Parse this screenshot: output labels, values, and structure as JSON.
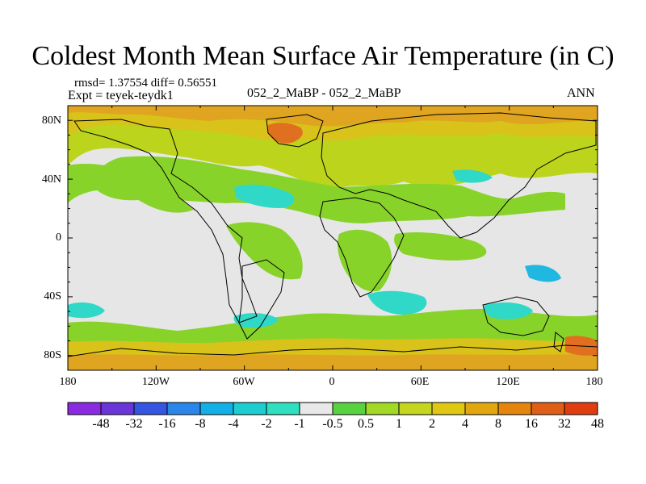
{
  "title": "Coldest Month Mean Surface Air Temperature (in C)",
  "stats": "rmsd= 1.37554 diff= 0.56551",
  "experiment": "Expt = teyek-teydk1",
  "center_title": "052_2_MaBP - 052_2_MaBP",
  "season": "ANN",
  "lat_labels": [
    "80N",
    "40N",
    "0",
    "40S",
    "80S"
  ],
  "lon_labels": [
    "180",
    "120W",
    "60W",
    "0",
    "60E",
    "120E",
    "180"
  ],
  "colorbar": {
    "labels": [
      "-48",
      "-32",
      "-16",
      "-8",
      "-4",
      "-2",
      "-1",
      "-0.5",
      "0.5",
      "1",
      "2",
      "4",
      "8",
      "16",
      "32",
      "48"
    ],
    "colors": [
      "#8a2be2",
      "#6a35d9",
      "#3456e0",
      "#2a86e8",
      "#12b0e6",
      "#1ccdd2",
      "#2fe0c0",
      "#e8e8e8",
      "#58d240",
      "#a2d826",
      "#c4d71e",
      "#e0c812",
      "#e2a70e",
      "#e5850c",
      "#e05f16",
      "#e03e10"
    ]
  },
  "map_colors": {
    "neutral": "#e6e6e6",
    "green": "#88d32a",
    "yellow_green": "#bcd51c",
    "yellow": "#d9c21a",
    "orange": "#e0a520",
    "red_orange": "#e07020",
    "cyan": "#30d8c8",
    "blue_cyan": "#20b8e0",
    "land_outline": "#000000"
  }
}
